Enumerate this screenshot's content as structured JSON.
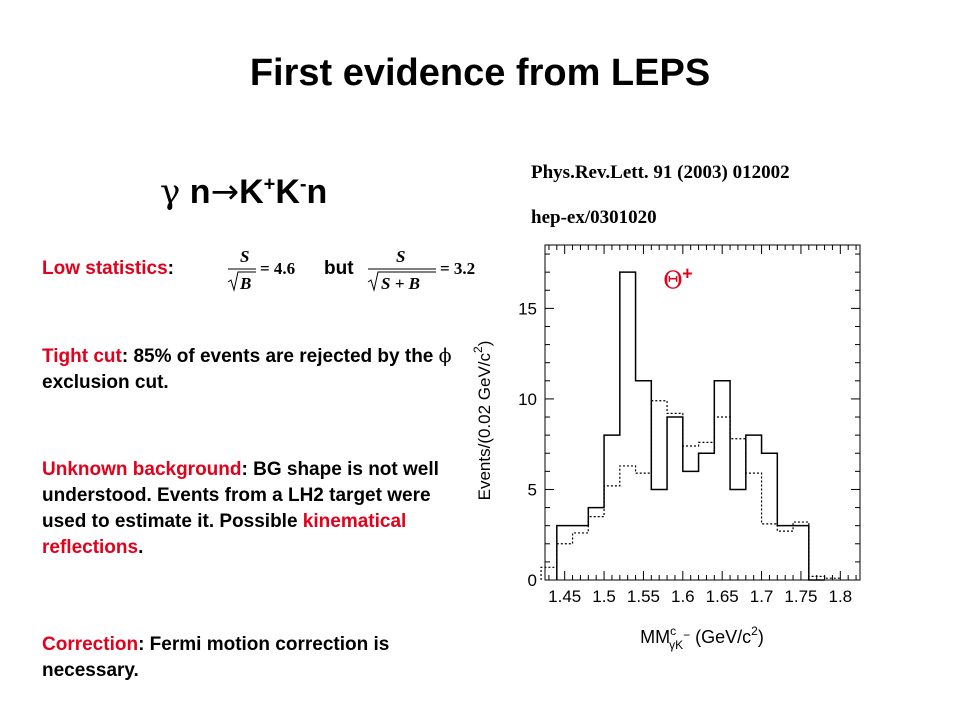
{
  "title": "First evidence from LEPS",
  "reaction": {
    "gamma": "γ",
    "n": "n",
    "arrow": "→",
    "k1": "K",
    "plus": "+",
    "k2": "K",
    "minus": "-",
    "n2": "n"
  },
  "reference": {
    "journal": "Phys.Rev.Lett. 91 (2003) 012002",
    "arxiv": "hep-ex/0301020"
  },
  "low_statistics": {
    "label": "Low statistics",
    "colon": ":",
    "but": "but",
    "formula1": {
      "num": "S",
      "den": "B",
      "rhs": "= 4.6"
    },
    "formula2": {
      "num": "S",
      "den": "S + B",
      "rhs": "= 3.2"
    }
  },
  "tight_cut": {
    "label": "Tight cut",
    "text1": ": 85% of events are rejected by the ",
    "phi": "ϕ",
    "text2": " exclusion cut."
  },
  "background": {
    "label": "Unknown background",
    "text1": ": BG shape is not well understood.  Events from a LH2 target were used to estimate it. Possible ",
    "highlight": "kinematical reflections",
    "text2": "."
  },
  "correction": {
    "label": "Correction",
    "text": ":  Fermi motion correction is necessary."
  },
  "colors": {
    "accent": "#e3001b",
    "text": "#000000",
    "background": "#ffffff"
  },
  "chart_data": {
    "type": "histogram",
    "xlabel": "MM",
    "xlabel_sup": "c",
    "xlabel_sub": "γK",
    "xlabel_minus": "−",
    "xlabel_unit": "(GeV/c",
    "xlabel_unit_sup": "2",
    "xlabel_unit_end": ")",
    "ylabel": "Events/(0.02 GeV/c",
    "ylabel_sup": "2",
    "ylabel_end": ")",
    "xlim": [
      1.425,
      1.825
    ],
    "ylim": [
      0,
      18.5
    ],
    "x_ticks": [
      "1.45",
      "1.5",
      "1.55",
      "1.6",
      "1.65",
      "1.7",
      "1.75",
      "1.8"
    ],
    "y_ticks": [
      "0",
      "5",
      "10",
      "15"
    ],
    "annotation": {
      "text": "Θ",
      "sup": "+"
    },
    "bin_edges": [
      1.44,
      1.46,
      1.48,
      1.5,
      1.52,
      1.54,
      1.56,
      1.58,
      1.6,
      1.62,
      1.64,
      1.66,
      1.68,
      1.7,
      1.72,
      1.74,
      1.76,
      1.78
    ],
    "series": [
      {
        "style": "solid",
        "values": [
          3,
          3,
          4,
          8,
          17,
          11,
          5,
          9,
          6,
          7,
          11,
          5,
          8,
          7,
          3,
          3,
          0
        ]
      },
      {
        "style": "dotted",
        "values": [
          2,
          2.6,
          3.5,
          5.2,
          6.3,
          5.9,
          9.9,
          9.2,
          7.4,
          7.6,
          9,
          7.8,
          5.9,
          3.1,
          2.7,
          3.2,
          0.2
        ]
      }
    ],
    "extra_bins_dotted": [
      {
        "x0": 1.42,
        "x1": 1.44,
        "value": 0.7
      },
      {
        "x0": 1.78,
        "x1": 1.8,
        "value": 0.1
      }
    ],
    "grid": false
  }
}
